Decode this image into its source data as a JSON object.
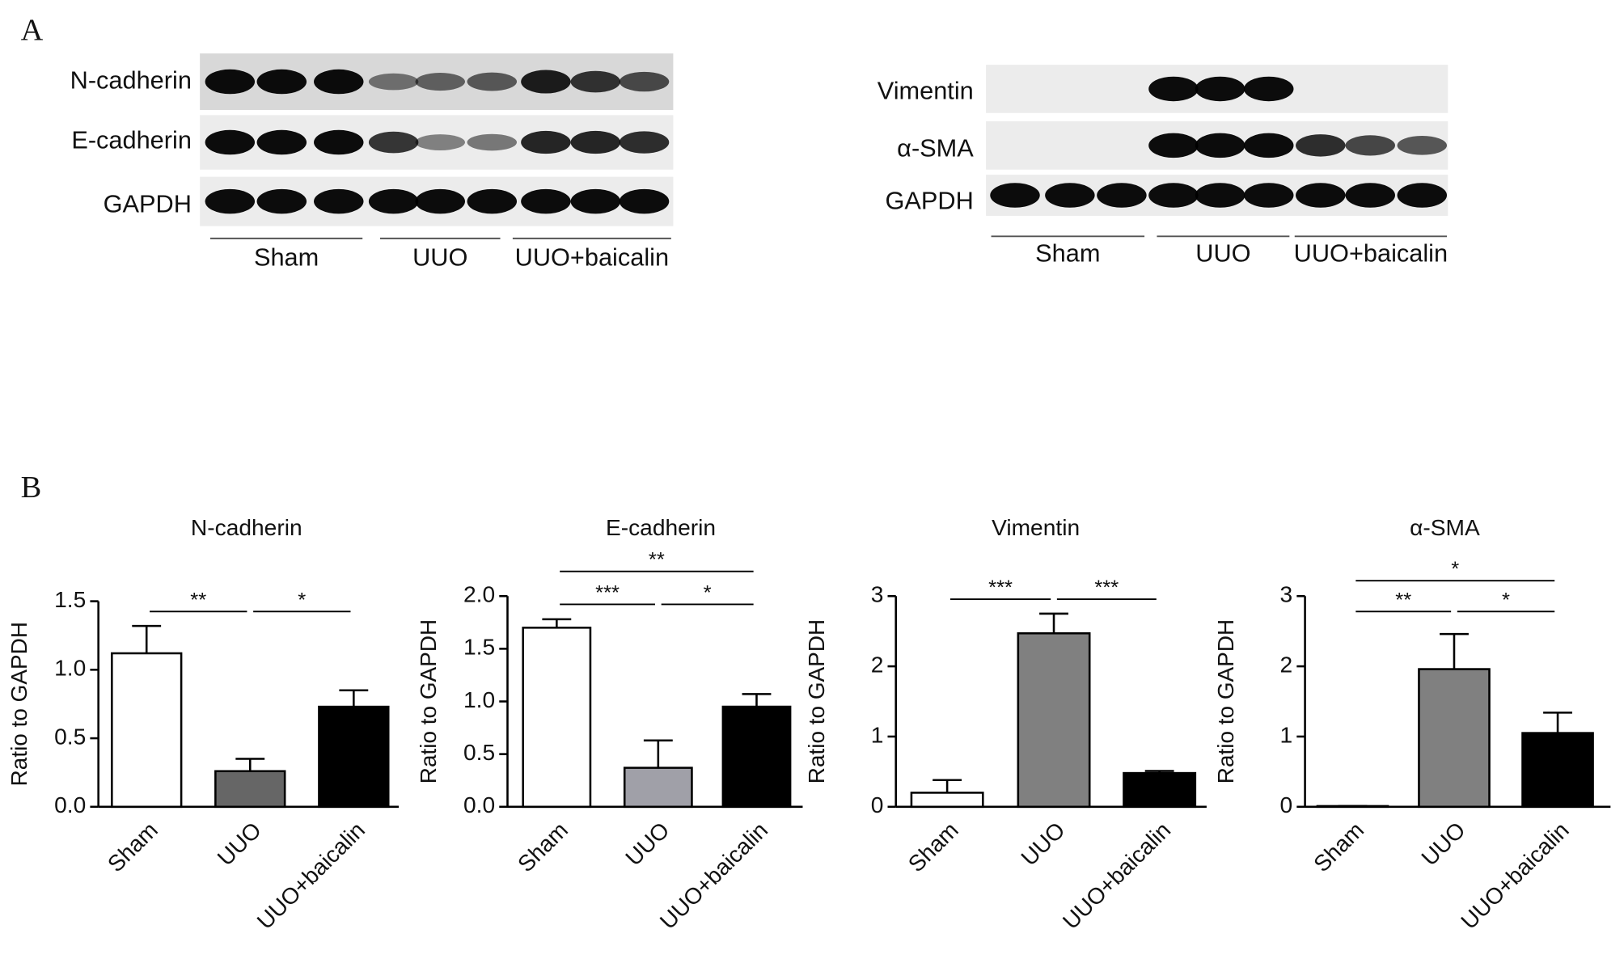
{
  "panel_labels": [
    "A",
    "B"
  ],
  "blots": [
    {
      "rows": [
        "N-cadherin",
        "E-cadherin",
        "GAPDH"
      ],
      "groups": [
        "Sham",
        "UUO",
        "UUO+baicalin"
      ]
    },
    {
      "rows": [
        "Vimentin",
        "α-SMA",
        "GAPDH"
      ],
      "groups": [
        "Sham",
        "UUO",
        "UUO+baicalin"
      ]
    }
  ],
  "chart_data": [
    {
      "type": "bar",
      "title": "N-cadherin",
      "ylabel": "Ratio to GAPDH",
      "categories": [
        "Sham",
        "UUO",
        "UUO+baicalin"
      ],
      "values": [
        1.12,
        0.26,
        0.73
      ],
      "errors": [
        0.2,
        0.09,
        0.12
      ],
      "colors": [
        "#ffffff",
        "#666666",
        "#000000"
      ],
      "ylim": [
        0,
        1.5
      ],
      "yticks": [
        {
          "value": 0,
          "label": "0.0"
        },
        0.5,
        {
          "value": 1,
          "label": "1.0"
        },
        1.5
      ],
      "annotations": [
        "**",
        "*"
      ]
    },
    {
      "type": "bar",
      "title": "E-cadherin",
      "ylabel": "Ratio to GAPDH",
      "categories": [
        "Sham",
        "UUO",
        "UUO+baicalin"
      ],
      "values": [
        1.7,
        0.37,
        0.95
      ],
      "errors": [
        0.08,
        0.26,
        0.12
      ],
      "colors": [
        "#ffffff",
        "#a0a0a8",
        "#000000"
      ],
      "ylim": [
        0,
        2
      ],
      "yticks": [
        {
          "value": 0,
          "label": "0.0"
        },
        0.5,
        {
          "value": 1,
          "label": "1.0"
        },
        1.5,
        {
          "value": 2,
          "label": "2.0"
        }
      ],
      "annotations": [
        "***",
        "*",
        "**"
      ]
    },
    {
      "type": "bar",
      "title": "Vimentin",
      "ylabel": "Ratio to GAPDH",
      "categories": [
        "Sham",
        "UUO",
        "UUO+baicalin"
      ],
      "values": [
        0.2,
        2.47,
        0.48
      ],
      "errors": [
        0.18,
        0.28,
        0.03
      ],
      "colors": [
        "#ffffff",
        "#808080",
        "#000000"
      ],
      "ylim": [
        0,
        3
      ],
      "yticks": [
        0,
        1,
        2,
        3
      ],
      "annotations": [
        "***",
        "***"
      ]
    },
    {
      "type": "bar",
      "title": "α-SMA",
      "ylabel": "Ratio to GAPDH",
      "categories": [
        "Sham",
        "UUO",
        "UUO+baicalin"
      ],
      "values": [
        0.01,
        1.96,
        1.05
      ],
      "errors": [
        0,
        0.5,
        0.29
      ],
      "colors": [
        "#ffffff",
        "#808080",
        "#000000"
      ],
      "ylim": [
        0,
        3
      ],
      "yticks": [
        0,
        1,
        2,
        3
      ],
      "annotations": [
        "**",
        "*",
        "*"
      ]
    }
  ]
}
